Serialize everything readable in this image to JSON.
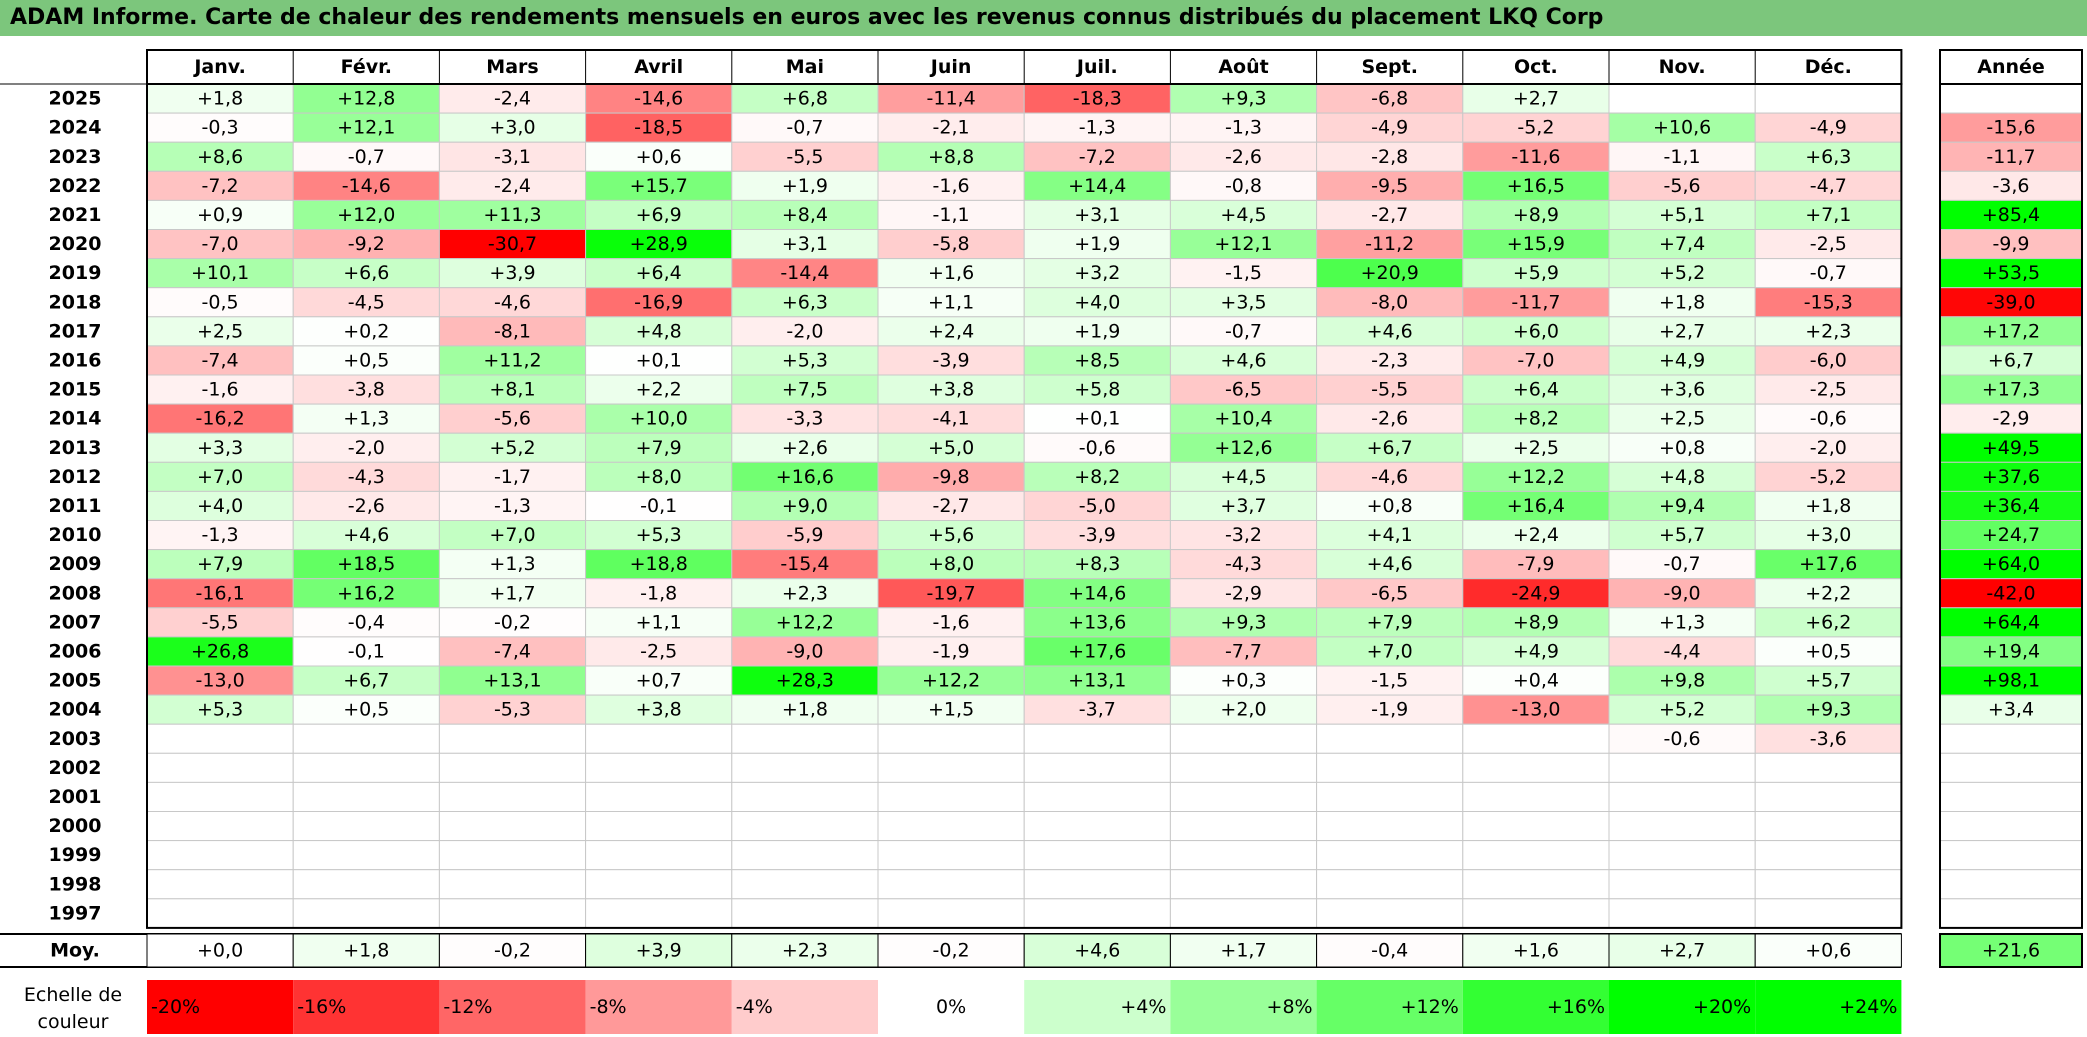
{
  "title": "ADAM Informe. Carte de chaleur des rendements mensuels en euros avec les revenus connus distribués du placement LKQ Corp",
  "chart_data": {
    "type": "heatmap",
    "title": "ADAM Informe. Carte de chaleur des rendements mensuels en euros avec les revenus connus distribués du placement LKQ Corp",
    "months": [
      "Janv.",
      "Févr.",
      "Mars",
      "Avril",
      "Mai",
      "Juin",
      "Juil.",
      "Août",
      "Sept.",
      "Oct.",
      "Nov.",
      "Déc."
    ],
    "year_column_label": "Année",
    "average_row_label": "Moy.",
    "rows": [
      {
        "year": "2025",
        "values": [
          1.8,
          12.8,
          -2.4,
          -14.6,
          6.8,
          -11.4,
          -18.3,
          9.3,
          -6.8,
          2.7,
          null,
          null
        ],
        "annual": null
      },
      {
        "year": "2024",
        "values": [
          -0.3,
          12.1,
          3.0,
          -18.5,
          -0.7,
          -2.1,
          -1.3,
          -1.3,
          -4.9,
          -5.2,
          10.6,
          -4.9
        ],
        "annual": -15.6
      },
      {
        "year": "2023",
        "values": [
          8.6,
          -0.7,
          -3.1,
          0.6,
          -5.5,
          8.8,
          -7.2,
          -2.6,
          -2.8,
          -11.6,
          -1.1,
          6.3
        ],
        "annual": -11.7
      },
      {
        "year": "2022",
        "values": [
          -7.2,
          -14.6,
          -2.4,
          15.7,
          1.9,
          -1.6,
          14.4,
          -0.8,
          -9.5,
          16.5,
          -5.6,
          -4.7
        ],
        "annual": -3.6
      },
      {
        "year": "2021",
        "values": [
          0.9,
          12.0,
          11.3,
          6.9,
          8.4,
          -1.1,
          3.1,
          4.5,
          -2.7,
          8.9,
          5.1,
          7.1
        ],
        "annual": 85.4
      },
      {
        "year": "2020",
        "values": [
          -7.0,
          -9.2,
          -30.7,
          28.9,
          3.1,
          -5.8,
          1.9,
          12.1,
          -11.2,
          15.9,
          7.4,
          -2.5
        ],
        "annual": -9.9
      },
      {
        "year": "2019",
        "values": [
          10.1,
          6.6,
          3.9,
          6.4,
          -14.4,
          1.6,
          3.2,
          -1.5,
          20.9,
          5.9,
          5.2,
          -0.7
        ],
        "annual": 53.5
      },
      {
        "year": "2018",
        "values": [
          -0.5,
          -4.5,
          -4.6,
          -16.9,
          6.3,
          1.1,
          4.0,
          3.5,
          -8.0,
          -11.7,
          1.8,
          -15.3
        ],
        "annual": -39.0
      },
      {
        "year": "2017",
        "values": [
          2.5,
          0.2,
          -8.1,
          4.8,
          -2.0,
          2.4,
          1.9,
          -0.7,
          4.6,
          6.0,
          2.7,
          2.3
        ],
        "annual": 17.2
      },
      {
        "year": "2016",
        "values": [
          -7.4,
          0.5,
          11.2,
          0.1,
          5.3,
          -3.9,
          8.5,
          4.6,
          -2.3,
          -7.0,
          4.9,
          -6.0
        ],
        "annual": 6.7
      },
      {
        "year": "2015",
        "values": [
          -1.6,
          -3.8,
          8.1,
          2.2,
          7.5,
          3.8,
          5.8,
          -6.5,
          -5.5,
          6.4,
          3.6,
          -2.5
        ],
        "annual": 17.3
      },
      {
        "year": "2014",
        "values": [
          -16.2,
          1.3,
          -5.6,
          10.0,
          -3.3,
          -4.1,
          0.1,
          10.4,
          -2.6,
          8.2,
          2.5,
          -0.6
        ],
        "annual": -2.9
      },
      {
        "year": "2013",
        "values": [
          3.3,
          -2.0,
          5.2,
          7.9,
          2.6,
          5.0,
          -0.6,
          12.6,
          6.7,
          2.5,
          0.8,
          -2.0
        ],
        "annual": 49.5
      },
      {
        "year": "2012",
        "values": [
          7.0,
          -4.3,
          -1.7,
          8.0,
          16.6,
          -9.8,
          8.2,
          4.5,
          -4.6,
          12.2,
          4.8,
          -5.2
        ],
        "annual": 37.6
      },
      {
        "year": "2011",
        "values": [
          4.0,
          -2.6,
          -1.3,
          -0.1,
          9.0,
          -2.7,
          -5.0,
          3.7,
          0.8,
          16.4,
          9.4,
          1.8
        ],
        "annual": 36.4
      },
      {
        "year": "2010",
        "values": [
          -1.3,
          4.6,
          7.0,
          5.3,
          -5.9,
          5.6,
          -3.9,
          -3.2,
          4.1,
          2.4,
          5.7,
          3.0
        ],
        "annual": 24.7
      },
      {
        "year": "2009",
        "values": [
          7.9,
          18.5,
          1.3,
          18.8,
          -15.4,
          8.0,
          8.3,
          -4.3,
          4.6,
          -7.9,
          -0.7,
          17.6
        ],
        "annual": 64.0
      },
      {
        "year": "2008",
        "values": [
          -16.1,
          16.2,
          1.7,
          -1.8,
          2.3,
          -19.7,
          14.6,
          -2.9,
          -6.5,
          -24.9,
          -9.0,
          2.2
        ],
        "annual": -42.0
      },
      {
        "year": "2007",
        "values": [
          -5.5,
          -0.4,
          -0.2,
          1.1,
          12.2,
          -1.6,
          13.6,
          9.3,
          7.9,
          8.9,
          1.3,
          6.2
        ],
        "annual": 64.4
      },
      {
        "year": "2006",
        "values": [
          26.8,
          -0.1,
          -7.4,
          -2.5,
          -9.0,
          -1.9,
          17.6,
          -7.7,
          7.0,
          4.9,
          -4.4,
          0.5
        ],
        "annual": 19.4
      },
      {
        "year": "2005",
        "values": [
          -13.0,
          6.7,
          13.1,
          0.7,
          28.3,
          12.2,
          13.1,
          0.3,
          -1.5,
          0.4,
          9.8,
          5.7
        ],
        "annual": 98.1
      },
      {
        "year": "2004",
        "values": [
          5.3,
          0.5,
          -5.3,
          3.8,
          1.8,
          1.5,
          -3.7,
          2.0,
          -1.9,
          -13.0,
          5.2,
          9.3
        ],
        "annual": 3.4
      },
      {
        "year": "2003",
        "values": [
          null,
          null,
          null,
          null,
          null,
          null,
          null,
          null,
          null,
          null,
          -0.6,
          -3.6
        ],
        "annual": null
      },
      {
        "year": "2002",
        "values": [
          null,
          null,
          null,
          null,
          null,
          null,
          null,
          null,
          null,
          null,
          null,
          null
        ],
        "annual": null
      },
      {
        "year": "2001",
        "values": [
          null,
          null,
          null,
          null,
          null,
          null,
          null,
          null,
          null,
          null,
          null,
          null
        ],
        "annual": null
      },
      {
        "year": "2000",
        "values": [
          null,
          null,
          null,
          null,
          null,
          null,
          null,
          null,
          null,
          null,
          null,
          null
        ],
        "annual": null
      },
      {
        "year": "1999",
        "values": [
          null,
          null,
          null,
          null,
          null,
          null,
          null,
          null,
          null,
          null,
          null,
          null
        ],
        "annual": null
      },
      {
        "year": "1998",
        "values": [
          null,
          null,
          null,
          null,
          null,
          null,
          null,
          null,
          null,
          null,
          null,
          null
        ],
        "annual": null
      },
      {
        "year": "1997",
        "values": [
          null,
          null,
          null,
          null,
          null,
          null,
          null,
          null,
          null,
          null,
          null,
          null
        ],
        "annual": null
      }
    ],
    "averages": [
      0.0,
      1.8,
      -0.2,
      3.9,
      2.3,
      -0.2,
      4.6,
      1.7,
      -0.4,
      1.6,
      2.7,
      0.6
    ],
    "average_annual": 21.6,
    "scale_label_line1": "Echelle de",
    "scale_label_line2": "couleur",
    "scale": [
      {
        "label": "-20%",
        "value": -20
      },
      {
        "label": "-16%",
        "value": -16
      },
      {
        "label": "-12%",
        "value": -12
      },
      {
        "label": "-8%",
        "value": -8
      },
      {
        "label": "-4%",
        "value": -4
      },
      {
        "label": "0%",
        "value": 0
      },
      {
        "label": "+4%",
        "value": 4
      },
      {
        "label": "+8%",
        "value": 8
      },
      {
        "label": "+12%",
        "value": 12
      },
      {
        "label": "+16%",
        "value": 16
      },
      {
        "label": "+20%",
        "value": 20
      },
      {
        "label": "+24%",
        "value": 24
      }
    ],
    "colors": {
      "negative_max": "#ff0000",
      "zero": "#ffffff",
      "positive_max": "#00ff00",
      "title_bar": "#7cc67c"
    }
  }
}
